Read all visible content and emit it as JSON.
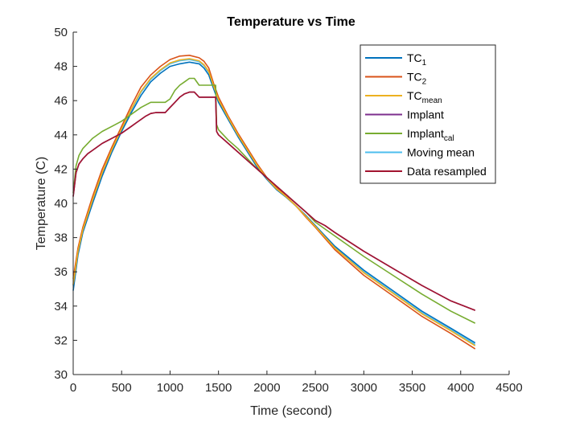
{
  "chart_data": {
    "type": "line",
    "title": "Temperature vs Time",
    "xlabel": "Time (second)",
    "ylabel": "Temperature (C)",
    "xlim": [
      0,
      4500
    ],
    "ylim": [
      30,
      50
    ],
    "xticks": [
      0,
      500,
      1000,
      1500,
      2000,
      2500,
      3000,
      3500,
      4000,
      4500
    ],
    "yticks": [
      30,
      32,
      34,
      36,
      38,
      40,
      42,
      44,
      46,
      48,
      50
    ],
    "grid": false,
    "legend_position": "top-right",
    "series": [
      {
        "name": "TC",
        "sub": "1",
        "color": "#0072BD",
        "x": [
          0,
          50,
          100,
          200,
          300,
          400,
          500,
          600,
          700,
          800,
          900,
          1000,
          1100,
          1200,
          1300,
          1350,
          1400,
          1450,
          1500,
          1600,
          1700,
          1800,
          1900,
          2000,
          2100,
          2200,
          2300,
          2400,
          2500,
          2700,
          3000,
          3300,
          3600,
          3900,
          4150
        ],
        "y": [
          34.9,
          37.0,
          38.3,
          40.0,
          41.6,
          43.0,
          44.2,
          45.3,
          46.3,
          47.1,
          47.6,
          48.0,
          48.15,
          48.25,
          48.15,
          47.9,
          47.5,
          46.7,
          45.9,
          44.9,
          43.9,
          43.0,
          42.1,
          41.4,
          40.8,
          40.35,
          39.85,
          39.3,
          38.7,
          37.5,
          36.1,
          34.9,
          33.7,
          32.7,
          31.85
        ]
      },
      {
        "name": "TC",
        "sub": "2",
        "color": "#D95319",
        "x": [
          0,
          50,
          100,
          200,
          300,
          400,
          500,
          600,
          700,
          800,
          900,
          1000,
          1100,
          1200,
          1300,
          1350,
          1400,
          1450,
          1500,
          1600,
          1700,
          1800,
          1900,
          2000,
          2100,
          2200,
          2300,
          2400,
          2500,
          2700,
          3000,
          3300,
          3600,
          3900,
          4150
        ],
        "y": [
          35.6,
          37.4,
          38.6,
          40.4,
          42.0,
          43.3,
          44.5,
          45.7,
          46.8,
          47.5,
          48.0,
          48.4,
          48.6,
          48.65,
          48.5,
          48.3,
          47.9,
          47.0,
          46.2,
          45.1,
          44.1,
          43.2,
          42.3,
          41.5,
          40.9,
          40.4,
          39.85,
          39.2,
          38.6,
          37.3,
          35.8,
          34.6,
          33.4,
          32.4,
          31.5
        ]
      },
      {
        "name": "TC",
        "sub": "mean",
        "color": "#EDB120",
        "x": [
          0,
          50,
          100,
          200,
          300,
          400,
          500,
          600,
          700,
          800,
          900,
          1000,
          1100,
          1200,
          1300,
          1350,
          1400,
          1450,
          1500,
          1600,
          1700,
          1800,
          1900,
          2000,
          2100,
          2200,
          2300,
          2400,
          2500,
          2700,
          3000,
          3300,
          3600,
          3900,
          4150
        ],
        "y": [
          35.25,
          37.2,
          38.45,
          40.2,
          41.8,
          43.15,
          44.35,
          45.5,
          46.55,
          47.3,
          47.8,
          48.2,
          48.38,
          48.45,
          48.33,
          48.1,
          47.7,
          46.85,
          46.05,
          45.0,
          44.0,
          43.1,
          42.2,
          41.45,
          40.85,
          40.38,
          39.85,
          39.25,
          38.65,
          37.4,
          35.95,
          34.75,
          33.55,
          32.55,
          31.68
        ]
      },
      {
        "name": "Implant",
        "sub": "",
        "color": "#7E2F8E",
        "x": [
          0,
          30,
          60,
          100,
          150,
          200,
          300,
          400,
          500,
          600,
          650,
          700,
          750,
          800,
          850,
          950,
          1000,
          1050,
          1100,
          1150,
          1200,
          1250,
          1300,
          1350,
          1400,
          1470,
          1480,
          1500,
          1600,
          1700,
          1800,
          1900,
          2000,
          2100,
          2200,
          2300,
          2400,
          2500,
          2600,
          2700,
          3000,
          3300,
          3600,
          3900,
          4150
        ],
        "y": [
          40.4,
          41.8,
          42.3,
          42.6,
          42.9,
          43.1,
          43.5,
          43.8,
          44.1,
          44.5,
          44.7,
          44.9,
          45.1,
          45.25,
          45.3,
          45.3,
          45.6,
          45.9,
          46.2,
          46.4,
          46.5,
          46.5,
          46.2,
          46.2,
          46.2,
          46.2,
          44.2,
          44.0,
          43.5,
          43.0,
          42.5,
          42.0,
          41.5,
          41.0,
          40.5,
          40.0,
          39.5,
          39.0,
          38.7,
          38.3,
          37.2,
          36.2,
          35.2,
          34.3,
          33.75
        ]
      },
      {
        "name": "Implant",
        "sub": "cal",
        "color": "#77AC30",
        "x": [
          0,
          30,
          60,
          100,
          150,
          200,
          300,
          400,
          500,
          600,
          700,
          800,
          900,
          950,
          1000,
          1050,
          1100,
          1150,
          1200,
          1250,
          1300,
          1350,
          1400,
          1470,
          1480,
          1500,
          1600,
          1700,
          1800,
          1900,
          2000,
          2100,
          2200,
          2300,
          2400,
          2500,
          2600,
          2700,
          3000,
          3300,
          3600,
          3900,
          4150
        ],
        "y": [
          40.6,
          42.2,
          42.8,
          43.2,
          43.5,
          43.8,
          44.2,
          44.5,
          44.8,
          45.2,
          45.6,
          45.9,
          45.9,
          45.9,
          46.1,
          46.6,
          46.9,
          47.1,
          47.3,
          47.3,
          46.9,
          46.9,
          46.9,
          46.9,
          44.6,
          44.3,
          43.7,
          43.2,
          42.6,
          42.0,
          41.5,
          41.0,
          40.5,
          40.0,
          39.5,
          38.9,
          38.5,
          38.1,
          36.9,
          35.8,
          34.7,
          33.7,
          33.0
        ]
      },
      {
        "name": "Moving mean",
        "sub": "",
        "color": "#4DBEEE",
        "x": [
          0,
          50,
          100,
          200,
          300,
          400,
          500,
          600,
          700,
          800,
          900,
          1000,
          1100,
          1200,
          1300,
          1350,
          1400,
          1450,
          1500,
          1600,
          1700,
          1800,
          1900,
          2000,
          2100,
          2200,
          2300,
          2400,
          2500,
          2700,
          3000,
          3300,
          3600,
          3900,
          4150
        ],
        "y": [
          35.2,
          37.1,
          38.4,
          40.15,
          41.75,
          43.1,
          44.3,
          45.45,
          46.5,
          47.25,
          47.75,
          48.15,
          48.33,
          48.4,
          48.28,
          48.05,
          47.65,
          46.8,
          46.0,
          44.95,
          43.95,
          43.05,
          42.15,
          41.42,
          40.82,
          40.36,
          39.84,
          39.27,
          38.67,
          37.45,
          36.0,
          34.8,
          33.6,
          32.6,
          31.75
        ]
      },
      {
        "name": "Data resampled",
        "sub": "",
        "color": "#A2142F",
        "x": [
          0,
          30,
          60,
          100,
          150,
          200,
          300,
          400,
          500,
          600,
          650,
          700,
          750,
          800,
          850,
          950,
          1000,
          1050,
          1100,
          1150,
          1200,
          1250,
          1300,
          1350,
          1400,
          1470,
          1480,
          1500,
          1600,
          1700,
          1800,
          1900,
          2000,
          2100,
          2200,
          2300,
          2400,
          2500,
          2600,
          2700,
          3000,
          3300,
          3600,
          3900,
          4150
        ],
        "y": [
          40.4,
          41.8,
          42.3,
          42.6,
          42.9,
          43.1,
          43.5,
          43.8,
          44.1,
          44.5,
          44.7,
          44.9,
          45.1,
          45.25,
          45.3,
          45.3,
          45.6,
          45.9,
          46.2,
          46.4,
          46.5,
          46.5,
          46.2,
          46.2,
          46.2,
          46.2,
          44.2,
          44.0,
          43.5,
          43.0,
          42.5,
          42.0,
          41.5,
          41.0,
          40.5,
          40.0,
          39.5,
          39.0,
          38.7,
          38.3,
          37.2,
          36.2,
          35.2,
          34.3,
          33.75
        ]
      }
    ]
  }
}
